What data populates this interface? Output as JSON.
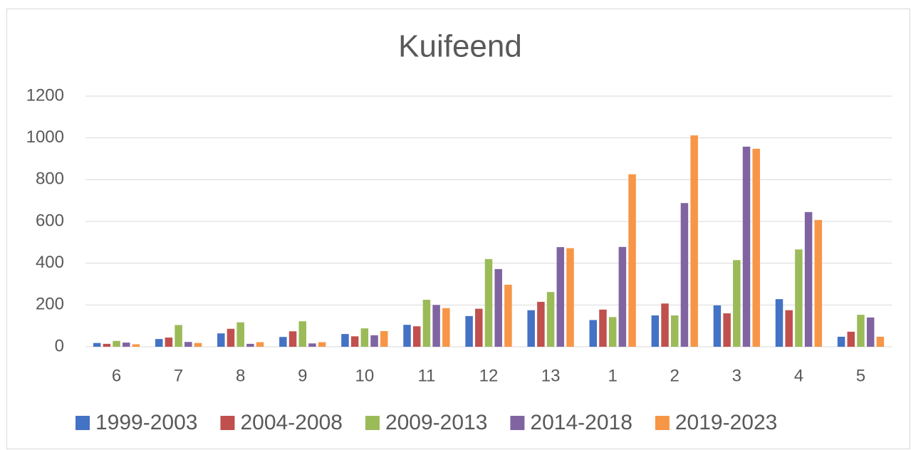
{
  "chart_data": {
    "type": "bar",
    "title": "Kuifeend",
    "categories": [
      "6",
      "7",
      "8",
      "9",
      "10",
      "11",
      "12",
      "13",
      "1",
      "2",
      "3",
      "4",
      "5"
    ],
    "series": [
      {
        "name": "1999-2003",
        "color": "#4472c4",
        "values": [
          18,
          37,
          64,
          47,
          61,
          105,
          147,
          175,
          128,
          150,
          198,
          228,
          48
        ]
      },
      {
        "name": "2004-2008",
        "color": "#c0504d",
        "values": [
          14,
          44,
          86,
          74,
          50,
          98,
          182,
          215,
          178,
          207,
          160,
          175,
          72
        ]
      },
      {
        "name": "2009-2013",
        "color": "#9bbb59",
        "values": [
          28,
          104,
          117,
          122,
          88,
          225,
          420,
          262,
          142,
          150,
          415,
          466,
          153
        ]
      },
      {
        "name": "2014-2018",
        "color": "#8064a2",
        "values": [
          20,
          23,
          14,
          16,
          55,
          200,
          372,
          477,
          478,
          688,
          958,
          645,
          140
        ]
      },
      {
        "name": "2019-2023",
        "color": "#f79646",
        "values": [
          12,
          18,
          22,
          22,
          75,
          185,
          297,
          472,
          826,
          1012,
          948,
          607,
          48
        ]
      }
    ],
    "ylim": [
      0,
      1200
    ],
    "yticks": [
      0,
      200,
      400,
      600,
      800,
      1000,
      1200
    ],
    "grid": true,
    "legend": "bottom"
  }
}
